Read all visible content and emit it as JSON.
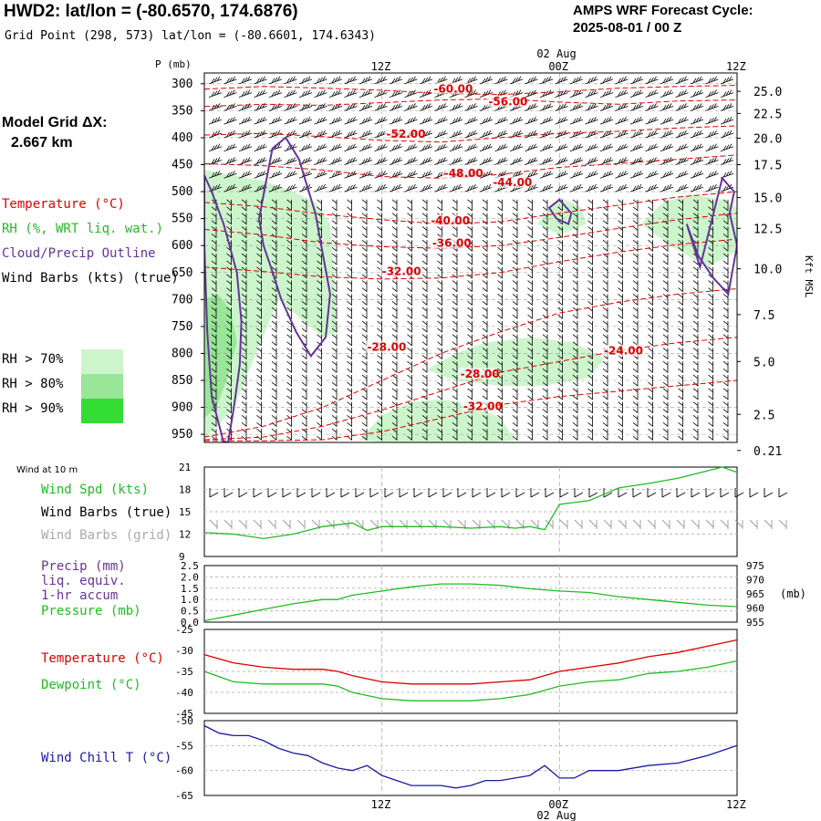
{
  "header": {
    "title": "HWD2:  lat/lon = (-80.6570, 174.6876)",
    "subtitle": "Grid Point (298, 573) lat/lon = (-80.6601, 174.6343)",
    "cycle_line1": "AMPS WRF Forecast Cycle:",
    "cycle_line2": "2025-08-01 / 00  Z",
    "grid_line1": "Model Grid ΔX:",
    "grid_line2": "2.667 km"
  },
  "legend": {
    "temperature": "Temperature (°C)",
    "rh": "RH (%, WRT liq. wat.)",
    "cloud": "Cloud/Precip Outline",
    "wind": "Wind Barbs (kts) (true)",
    "rh70": "RH > 70%",
    "rh80": "RH > 80%",
    "rh90": "RH > 90%",
    "rh70_color": "#ccf5cc",
    "rh80_color": "#99e699",
    "rh90_color": "#33dd33"
  },
  "colors": {
    "temperature": "#dd0000",
    "rh": "#22bb22",
    "cloud": "#663399",
    "windchill": "#1a1aa0",
    "grid": "#aaaaaa"
  },
  "time_axis": {
    "top_labels": [
      "12Z",
      "00Z",
      "12Z"
    ],
    "date_label": "02 Aug",
    "bottom_labels": [
      "12Z",
      "00Z",
      "12Z"
    ]
  },
  "chart_data": [
    {
      "type": "heatmap",
      "title": "",
      "ylabel": "P (mb)",
      "y2label": "Kft MSL",
      "yticks": [
        "300",
        "350",
        "400",
        "450",
        "500",
        "550",
        "600",
        "650",
        "700",
        "750",
        "800",
        "850",
        "900",
        "950"
      ],
      "ylim": [
        300,
        960
      ],
      "y2ticks": [
        "25.0",
        "22.5",
        "20.0",
        "17.5",
        "15.0",
        "12.5",
        "10.0",
        "7.5",
        "5.0",
        "2.5",
        "0.21"
      ],
      "y2tick_pressures": [
        314,
        355,
        401,
        450,
        511,
        568,
        643,
        728,
        815,
        913,
        980
      ],
      "xlim": [
        0,
        36
      ],
      "xticks": [
        12,
        24,
        36
      ],
      "xtick_labels": [
        "12Z",
        "00Z",
        "12Z"
      ],
      "temperature_labels": [
        {
          "text": "-60.00",
          "x": 15.5,
          "p": 316
        },
        {
          "text": "-56.00",
          "x": 19.2,
          "p": 340
        },
        {
          "text": "-52.00",
          "x": 12.3,
          "p": 400
        },
        {
          "text": "-48.00",
          "x": 16.2,
          "p": 473
        },
        {
          "text": "-44.00",
          "x": 19.5,
          "p": 490
        },
        {
          "text": "-40.00",
          "x": 15.3,
          "p": 561
        },
        {
          "text": "-36.00",
          "x": 15.4,
          "p": 602
        },
        {
          "text": "-32.00",
          "x": 12.0,
          "p": 655
        },
        {
          "text": "-28.00",
          "x": 11.0,
          "p": 795
        },
        {
          "text": "-28.00",
          "x": 17.3,
          "p": 845
        },
        {
          "text": "-32.00",
          "x": 17.5,
          "p": 905
        },
        {
          "text": "-24.00",
          "x": 27.0,
          "p": 802
        }
      ],
      "temperature_contours": [
        {
          "x": [
            0,
            4,
            8,
            12,
            16,
            20,
            24,
            28,
            32,
            36
          ],
          "p": [
            310,
            305,
            308,
            312,
            318,
            320,
            315,
            308,
            305,
            303
          ]
        },
        {
          "x": [
            0,
            4,
            8,
            12,
            16,
            20,
            24,
            28,
            32,
            36
          ],
          "p": [
            342,
            338,
            340,
            335,
            330,
            328,
            334,
            338,
            332,
            330
          ]
        },
        {
          "x": [
            0,
            4,
            8,
            12,
            16,
            20,
            24,
            28,
            32,
            36
          ],
          "p": [
            395,
            392,
            398,
            405,
            408,
            400,
            392,
            388,
            382,
            378
          ]
        },
        {
          "x": [
            0,
            4,
            8,
            12,
            16,
            20,
            24,
            28,
            32,
            36
          ],
          "p": [
            448,
            452,
            460,
            472,
            475,
            468,
            455,
            448,
            440,
            432
          ]
        },
        {
          "x": [
            0,
            4,
            8,
            12,
            16,
            20,
            24,
            28,
            32,
            36
          ],
          "p": [
            520,
            528,
            542,
            552,
            560,
            556,
            540,
            525,
            510,
            500
          ]
        },
        {
          "x": [
            0,
            4,
            8,
            12,
            16,
            20,
            24,
            28,
            32,
            36
          ],
          "p": [
            570,
            580,
            595,
            602,
            605,
            600,
            585,
            568,
            552,
            540
          ]
        },
        {
          "x": [
            0,
            4,
            8,
            12,
            16,
            20,
            24,
            28,
            32,
            36
          ],
          "p": [
            640,
            648,
            658,
            662,
            660,
            650,
            630,
            612,
            598,
            588
          ]
        },
        {
          "x": [
            0,
            4,
            8,
            12,
            16,
            20,
            24,
            28,
            32,
            36
          ],
          "p": [
            955,
            935,
            900,
            850,
            800,
            760,
            725,
            705,
            690,
            680
          ]
        },
        {
          "x": [
            0,
            4,
            8,
            12,
            16,
            20,
            24,
            28,
            32,
            36
          ],
          "p": [
            960,
            955,
            935,
            905,
            870,
            835,
            815,
            795,
            780,
            770
          ]
        },
        {
          "x": [
            0,
            4,
            8,
            12,
            16,
            20,
            24,
            28,
            32,
            36
          ],
          "p": [
            962,
            962,
            960,
            945,
            920,
            895,
            880,
            870,
            860,
            850
          ]
        }
      ],
      "cloud_outlines": [
        {
          "x": [
            0,
            0.5,
            1.3,
            2.2,
            2.5,
            2.4,
            2.0,
            1.6,
            1.3,
            0.5,
            0.2,
            0
          ],
          "p": [
            470,
            500,
            560,
            650,
            740,
            820,
            900,
            965,
            965,
            880,
            760,
            600
          ]
        },
        {
          "x": [
            3.7,
            4.6,
            5.5,
            6.4,
            7.5,
            8.5,
            8.2,
            7.2,
            6.2,
            5.2,
            4.5,
            4.0,
            3.7
          ],
          "p": [
            550,
            420,
            400,
            440,
            540,
            690,
            770,
            805,
            760,
            700,
            640,
            600,
            550
          ]
        },
        {
          "x": [
            23.3,
            24.0,
            24.8,
            24.6,
            23.8,
            23.3
          ],
          "p": [
            530,
            515,
            540,
            560,
            550,
            530
          ]
        },
        {
          "x": [
            33.5,
            35.0,
            35.8,
            35.5,
            36,
            35.4,
            34.4,
            33.4,
            32.6,
            33.5
          ],
          "p": [
            640,
            475,
            500,
            540,
            600,
            690,
            660,
            620,
            560,
            640
          ]
        }
      ],
      "rh_regions": [
        {
          "level": 70,
          "x": [
            0,
            2,
            4,
            6,
            7.5,
            8.5,
            9,
            8,
            5,
            2,
            0
          ],
          "p": [
            460,
            470,
            480,
            500,
            520,
            560,
            760,
            770,
            700,
            900,
            960
          ]
        },
        {
          "level": 70,
          "x": [
            10.5,
            12,
            14,
            16,
            18,
            20,
            21,
            21.5,
            19,
            16,
            14,
            12,
            10.5
          ],
          "p": [
            960,
            915,
            890,
            885,
            895,
            920,
            960,
            960,
            965,
            965,
            965,
            965,
            960
          ]
        },
        {
          "level": 70,
          "x": [
            15,
            17,
            19,
            22,
            25,
            27,
            26,
            23,
            20,
            17,
            15
          ],
          "p": [
            830,
            800,
            780,
            770,
            780,
            810,
            845,
            860,
            860,
            850,
            830
          ]
        },
        {
          "level": 70,
          "x": [
            22.5,
            24,
            25.5,
            25.8,
            24,
            22.5
          ],
          "p": [
            560,
            510,
            530,
            560,
            580,
            560
          ]
        },
        {
          "level": 70,
          "x": [
            29.5,
            31,
            33,
            35,
            36,
            36,
            34,
            31.5,
            29.5
          ],
          "p": [
            560,
            520,
            505,
            515,
            530,
            610,
            640,
            600,
            560
          ]
        },
        {
          "level": 80,
          "x": [
            0,
            0.9,
            1.8,
            2.2,
            1.5,
            0.8,
            0
          ],
          "p": [
            700,
            690,
            720,
            780,
            850,
            900,
            920
          ]
        }
      ],
      "wind_barb_rows_mb": [
        300,
        325,
        350,
        375,
        400,
        425,
        450,
        475,
        500,
        525,
        550,
        575,
        600,
        625,
        650,
        675,
        700,
        725,
        750,
        775,
        800,
        825,
        850,
        875,
        900,
        925,
        950
      ]
    },
    {
      "type": "line",
      "title": "Wind at 10 m",
      "series": [
        {
          "name": "Wind Spd (kts)",
          "color": "#22bb22",
          "x": [
            0,
            2,
            4,
            6,
            8,
            10,
            11,
            12,
            14,
            16,
            18,
            20,
            21,
            22,
            23,
            24,
            26,
            28,
            30,
            32,
            34,
            35,
            36
          ],
          "values": [
            12.2,
            12.0,
            11.4,
            12.0,
            13.0,
            13.5,
            12.5,
            13.0,
            13.0,
            13.0,
            12.8,
            13.0,
            12.8,
            13.0,
            12.6,
            16.0,
            16.5,
            18.2,
            18.8,
            19.5,
            20.5,
            21.0,
            20.3
          ]
        }
      ],
      "legend": [
        "Wind Spd (kts)",
        "Wind Barbs (true)",
        "Wind Barbs (grid)"
      ],
      "yticks": [
        "21",
        "18",
        "15",
        "12",
        "9"
      ],
      "ylim": [
        9,
        21
      ]
    },
    {
      "type": "line",
      "title": "",
      "series": [
        {
          "name": "Pressure (mb)",
          "color": "#22bb22",
          "x": [
            0,
            2,
            4,
            6,
            8,
            9,
            10,
            12,
            14,
            16,
            18,
            20,
            22,
            24,
            26,
            28,
            30,
            32,
            34,
            36
          ],
          "values": [
            955.5,
            957.5,
            959.5,
            961.5,
            963,
            963,
            964.5,
            966,
            967.5,
            968.5,
            968.5,
            968,
            966.8,
            966,
            965.5,
            964,
            963,
            962,
            961,
            960.5
          ]
        }
      ],
      "legend": [
        "Precip (mm)",
        "liq. equiv.",
        "1-hr accum",
        "Pressure (mb)"
      ],
      "yticks_left": [
        "2.5",
        "2.0",
        "1.5",
        "1.0",
        "0.5",
        "0.0"
      ],
      "ylim_left": [
        0,
        2.5
      ],
      "yticks_right": [
        "975",
        "970",
        "965",
        "960",
        "955"
      ],
      "ylim_right": [
        955,
        975
      ],
      "right_unit": "(mb)"
    },
    {
      "type": "line",
      "title": "",
      "series": [
        {
          "name": "Temperature (°C)",
          "color": "#dd0000",
          "x": [
            0,
            2,
            4,
            6,
            8,
            9,
            10,
            12,
            14,
            16,
            18,
            20,
            22,
            24,
            26,
            28,
            30,
            32,
            34,
            36
          ],
          "values": [
            -31,
            -33,
            -34,
            -34.5,
            -34.5,
            -35,
            -36,
            -37.5,
            -38,
            -38,
            -38,
            -37.5,
            -37,
            -35,
            -34,
            -33,
            -31.5,
            -30.5,
            -29,
            -27.5
          ]
        },
        {
          "name": "Dewpoint (°C)",
          "color": "#22bb22",
          "x": [
            0,
            2,
            4,
            6,
            8,
            9,
            10,
            12,
            14,
            16,
            18,
            20,
            22,
            24,
            26,
            28,
            30,
            32,
            34,
            36
          ],
          "values": [
            -35,
            -37.5,
            -38,
            -38,
            -38,
            -38.5,
            -40,
            -41.5,
            -42,
            -42,
            -42,
            -41.5,
            -40.5,
            -38.5,
            -37.5,
            -37,
            -35.5,
            -35,
            -34,
            -32.5
          ]
        }
      ],
      "yticks": [
        "-25",
        "-30",
        "-35",
        "-40",
        "-45"
      ],
      "ylim": [
        -45,
        -25
      ]
    },
    {
      "type": "line",
      "title": "",
      "series": [
        {
          "name": "Wind Chill T (°C)",
          "color": "#1a1aa0",
          "x": [
            0,
            1,
            2,
            3,
            4,
            5,
            6,
            7,
            8,
            9,
            10,
            11,
            12,
            13,
            14,
            15,
            16,
            17,
            18,
            19,
            20,
            21,
            22,
            23,
            24,
            25,
            26,
            28,
            30,
            32,
            34,
            36
          ],
          "values": [
            -51,
            -52.5,
            -53,
            -53,
            -54,
            -55.5,
            -56.5,
            -57,
            -58.5,
            -59.5,
            -60,
            -59,
            -61,
            -62,
            -63,
            -63,
            -63,
            -63.5,
            -63,
            -62,
            -62,
            -61.5,
            -61,
            -59,
            -61.5,
            -61.5,
            -60,
            -60,
            -59,
            -58.5,
            -57,
            -55
          ]
        }
      ],
      "yticks": [
        "-50",
        "-55",
        "-60",
        "-65"
      ],
      "ylim": [
        -65,
        -50
      ]
    }
  ]
}
